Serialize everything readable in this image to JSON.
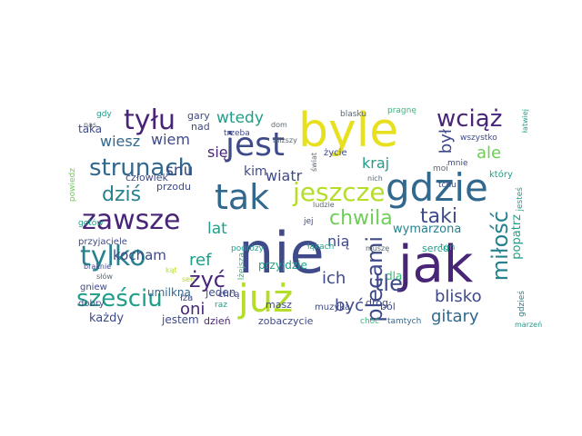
{
  "word_cloud": {
    "colors": {
      "dark_purple": "#482576",
      "indigo": "#3e4a89",
      "slate": "#31688e",
      "teal_blue": "#26828e",
      "teal": "#1f9e89",
      "green": "#35b779",
      "light_green": "#6ece58",
      "lime": "#b5de2b",
      "yellow": "#e7e01f",
      "gray": "#5b6770"
    },
    "words": [
      {
        "text": "byle",
        "color": "yellow"
      },
      {
        "text": "nie",
        "color": "indigo"
      },
      {
        "text": "jak",
        "color": "dark_purple"
      },
      {
        "text": "gdzie",
        "color": "slate"
      },
      {
        "text": "już",
        "color": "lime"
      },
      {
        "text": "tak",
        "color": "slate"
      },
      {
        "text": "jest",
        "color": "indigo"
      },
      {
        "text": "zawsze",
        "color": "dark_purple"
      },
      {
        "text": "tylko",
        "color": "teal_blue"
      },
      {
        "text": "jeszcze",
        "color": "lime"
      },
      {
        "text": "strunach",
        "color": "slate"
      },
      {
        "text": "tyłu",
        "color": "dark_purple"
      },
      {
        "text": "sześciu",
        "color": "teal"
      },
      {
        "text": "wciąż",
        "color": "dark_purple"
      },
      {
        "text": "chwila",
        "color": "light_green"
      },
      {
        "text": "taki",
        "color": "indigo"
      },
      {
        "text": "dziś",
        "color": "teal_blue"
      },
      {
        "text": "miłość",
        "color": "teal_blue"
      },
      {
        "text": "żyć",
        "color": "dark_purple"
      },
      {
        "text": "tle",
        "color": "indigo"
      },
      {
        "text": "plecami",
        "color": "indigo"
      },
      {
        "text": "ref",
        "color": "teal"
      },
      {
        "text": "lat",
        "color": "teal"
      },
      {
        "text": "być",
        "color": "indigo"
      },
      {
        "text": "ich",
        "color": "indigo"
      },
      {
        "text": "gitary",
        "color": "slate"
      },
      {
        "text": "blisko",
        "color": "indigo"
      },
      {
        "text": "oni",
        "color": "dark_purple"
      },
      {
        "text": "wtedy",
        "color": "teal"
      },
      {
        "text": "wiem",
        "color": "indigo"
      },
      {
        "text": "wiesz",
        "color": "slate"
      },
      {
        "text": "snu",
        "color": "indigo"
      },
      {
        "text": "się",
        "color": "dark_purple"
      },
      {
        "text": "ale",
        "color": "light_green"
      },
      {
        "text": "kraj",
        "color": "teal"
      },
      {
        "text": "był",
        "color": "indigo"
      },
      {
        "text": "wiatr",
        "color": "indigo"
      },
      {
        "text": "kim",
        "color": "indigo"
      },
      {
        "text": "kocham",
        "color": "indigo"
      },
      {
        "text": "nią",
        "color": "indigo"
      },
      {
        "text": "wymarzona",
        "color": "teal_blue"
      },
      {
        "text": "popatrz",
        "color": "teal"
      },
      {
        "text": "przyjdzie",
        "color": "teal"
      },
      {
        "text": "dla",
        "color": "green"
      },
      {
        "text": "umilkną",
        "color": "slate"
      },
      {
        "text": "jeden",
        "color": "indigo"
      },
      {
        "text": "taka",
        "color": "indigo"
      },
      {
        "text": "gary",
        "color": "indigo"
      },
      {
        "text": "nad",
        "color": "indigo"
      },
      {
        "text": "człowiek",
        "color": "indigo"
      },
      {
        "text": "przodu",
        "color": "indigo"
      },
      {
        "text": "każdy",
        "color": "indigo"
      },
      {
        "text": "jestem",
        "color": "indigo"
      },
      {
        "text": "dzień",
        "color": "dark_purple"
      },
      {
        "text": "zobaczycie",
        "color": "indigo"
      },
      {
        "text": "masz",
        "color": "indigo"
      },
      {
        "text": "muzyka",
        "color": "indigo"
      },
      {
        "text": "dróg",
        "color": "indigo"
      },
      {
        "text": "sercu",
        "color": "teal"
      },
      {
        "text": "ten",
        "color": "teal"
      },
      {
        "text": "ból",
        "color": "indigo"
      },
      {
        "text": "chcą",
        "color": "indigo"
      },
      {
        "text": "łza",
        "color": "indigo"
      },
      {
        "text": "raz",
        "color": "teal"
      },
      {
        "text": "dobry",
        "color": "indigo"
      },
      {
        "text": "gniew",
        "color": "indigo"
      },
      {
        "text": "przyjaciele",
        "color": "indigo"
      },
      {
        "text": "podróży",
        "color": "teal"
      },
      {
        "text": "jej",
        "color": "indigo"
      },
      {
        "text": "łąkach",
        "color": "teal"
      },
      {
        "text": "mnie",
        "color": "indigo"
      },
      {
        "text": "życie",
        "color": "indigo"
      },
      {
        "text": "który",
        "color": "teal"
      },
      {
        "text": "moi",
        "color": "gray"
      },
      {
        "text": "tchu",
        "color": "indigo"
      },
      {
        "text": "wszystko",
        "color": "indigo"
      },
      {
        "text": "trzeba",
        "color": "indigo"
      },
      {
        "text": "gdy",
        "color": "teal"
      },
      {
        "text": "blasku",
        "color": "gray"
      },
      {
        "text": "pragnę",
        "color": "green"
      },
      {
        "text": "świat",
        "color": "gray"
      },
      {
        "text": "dom",
        "color": "gray"
      },
      {
        "text": "bliższy",
        "color": "gray"
      },
      {
        "text": "nich",
        "color": "gray"
      },
      {
        "text": "ludzie",
        "color": "gray"
      },
      {
        "text": "muszę",
        "color": "gray"
      },
      {
        "text": "lżejsza",
        "color": "green"
      },
      {
        "text": "choć",
        "color": "green"
      },
      {
        "text": "tamtych",
        "color": "slate"
      },
      {
        "text": "marzeń",
        "color": "teal"
      },
      {
        "text": "gdzieś",
        "color": "teal_blue"
      },
      {
        "text": "jesteś",
        "color": "teal"
      },
      {
        "text": "łatwiej",
        "color": "teal"
      },
      {
        "text": "nas",
        "color": "gray"
      },
      {
        "text": "powiedz",
        "color": "light_green"
      },
      {
        "text": "gotów",
        "color": "teal"
      },
      {
        "text": "braknie",
        "color": "indigo"
      },
      {
        "text": "słów",
        "color": "gray"
      },
      {
        "text": "kąt",
        "color": "lime"
      },
      {
        "text": "sen",
        "color": "lime"
      }
    ]
  }
}
